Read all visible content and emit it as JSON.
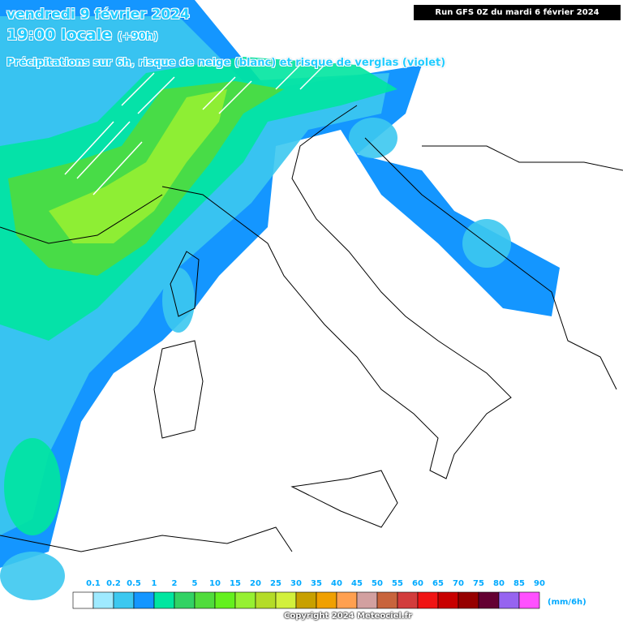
{
  "header": {
    "date": "vendredi 9 février 2024",
    "time": "19:00 locale",
    "lead": "(+90h)",
    "subtitle": "Précipitations sur 6h, risque de neige (blanc) et risque de verglas (violet)",
    "run": "Run GFS 0Z du mardi 6 février 2024"
  },
  "legend": {
    "labels": [
      "0.1",
      "0.2",
      "0.5",
      "1",
      "2",
      "5",
      "10",
      "15",
      "20",
      "25",
      "30",
      "35",
      "40",
      "45",
      "50",
      "55",
      "60",
      "65",
      "70",
      "75",
      "80",
      "85",
      "90"
    ],
    "colors": [
      "#ffffff",
      "#9feaff",
      "#3cc8f0",
      "#1496ff",
      "#00e6a0",
      "#32d264",
      "#50dc3c",
      "#64f01e",
      "#96f032",
      "#b4dc28",
      "#d2f03c",
      "#c8a000",
      "#f0a000",
      "#ffa050",
      "#d2a0a0",
      "#c8643c",
      "#d23c3c",
      "#f01414",
      "#c80000",
      "#960000",
      "#640032",
      "#9664f0",
      "#ff50ff"
    ],
    "unit": "(mm/6h)"
  },
  "footer": {
    "copyright": "Copyright 2024 Meteociel.fr"
  }
}
